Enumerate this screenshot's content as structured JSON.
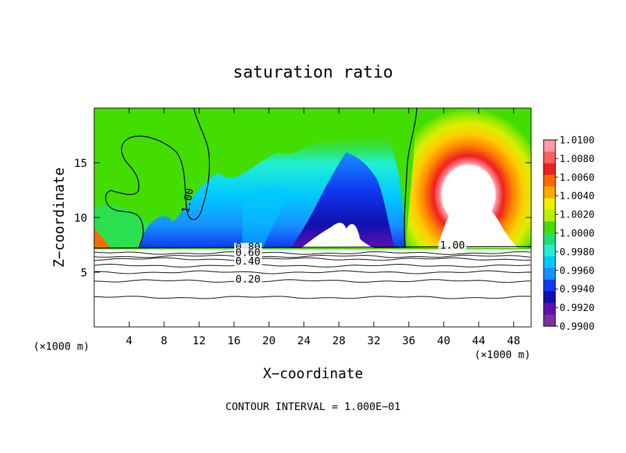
{
  "chart_data": {
    "type": "heatmap",
    "title": "saturation ratio",
    "xlabel": "X−coordinate",
    "ylabel": "Z−coordinate",
    "x_unit_left": "(×1000 m)",
    "x_unit_right": "(×1000 m)",
    "footer": "CONTOUR INTERVAL = 1.000E−01",
    "xlim": [
      0,
      50
    ],
    "ylim": [
      0,
      20
    ],
    "xticks": [
      4,
      8,
      12,
      16,
      20,
      24,
      28,
      32,
      36,
      40,
      44,
      48
    ],
    "yticks": [
      5,
      10,
      15
    ],
    "surface_z": 7.0,
    "colorbar": {
      "labels": [
        "1.0100",
        "1.0080",
        "1.0060",
        "1.0040",
        "1.0020",
        "1.0000",
        "0.9980",
        "0.9960",
        "0.9940",
        "0.9920",
        "0.9900"
      ],
      "colors": [
        "#ff9aa6",
        "#ff6060",
        "#f02020",
        "#ff6a00",
        "#ffaa00",
        "#eeee00",
        "#b8f000",
        "#44dd00",
        "#22e070",
        "#22f0d0",
        "#00c8ff",
        "#1890ff",
        "#1038f0",
        "#1010b0",
        "#6010b0",
        "#7a30a0"
      ]
    },
    "contour_labels": [
      {
        "text": "1.00",
        "x": 11,
        "z": 11.5
      },
      {
        "text": "1.00",
        "x": 41,
        "z": 7.2
      },
      {
        "text": "0.80",
        "x": 17.6,
        "z": 7.05
      },
      {
        "text": "0.60",
        "x": 17.6,
        "z": 6.55
      },
      {
        "text": "0.40",
        "x": 17.6,
        "z": 5.75
      },
      {
        "text": "0.20",
        "x": 17.6,
        "z": 4.1
      }
    ],
    "subsurface_contours": [
      {
        "level": 0.8,
        "z": 6.75
      },
      {
        "level": 0.7,
        "z": 6.45
      },
      {
        "level": 0.6,
        "z": 6.2
      },
      {
        "level": 0.4,
        "z": 5.6
      },
      {
        "level": 0.3,
        "z": 5.0
      },
      {
        "level": 0.2,
        "z": 4.2
      },
      {
        "level": 0.1,
        "z": 2.7
      }
    ]
  }
}
